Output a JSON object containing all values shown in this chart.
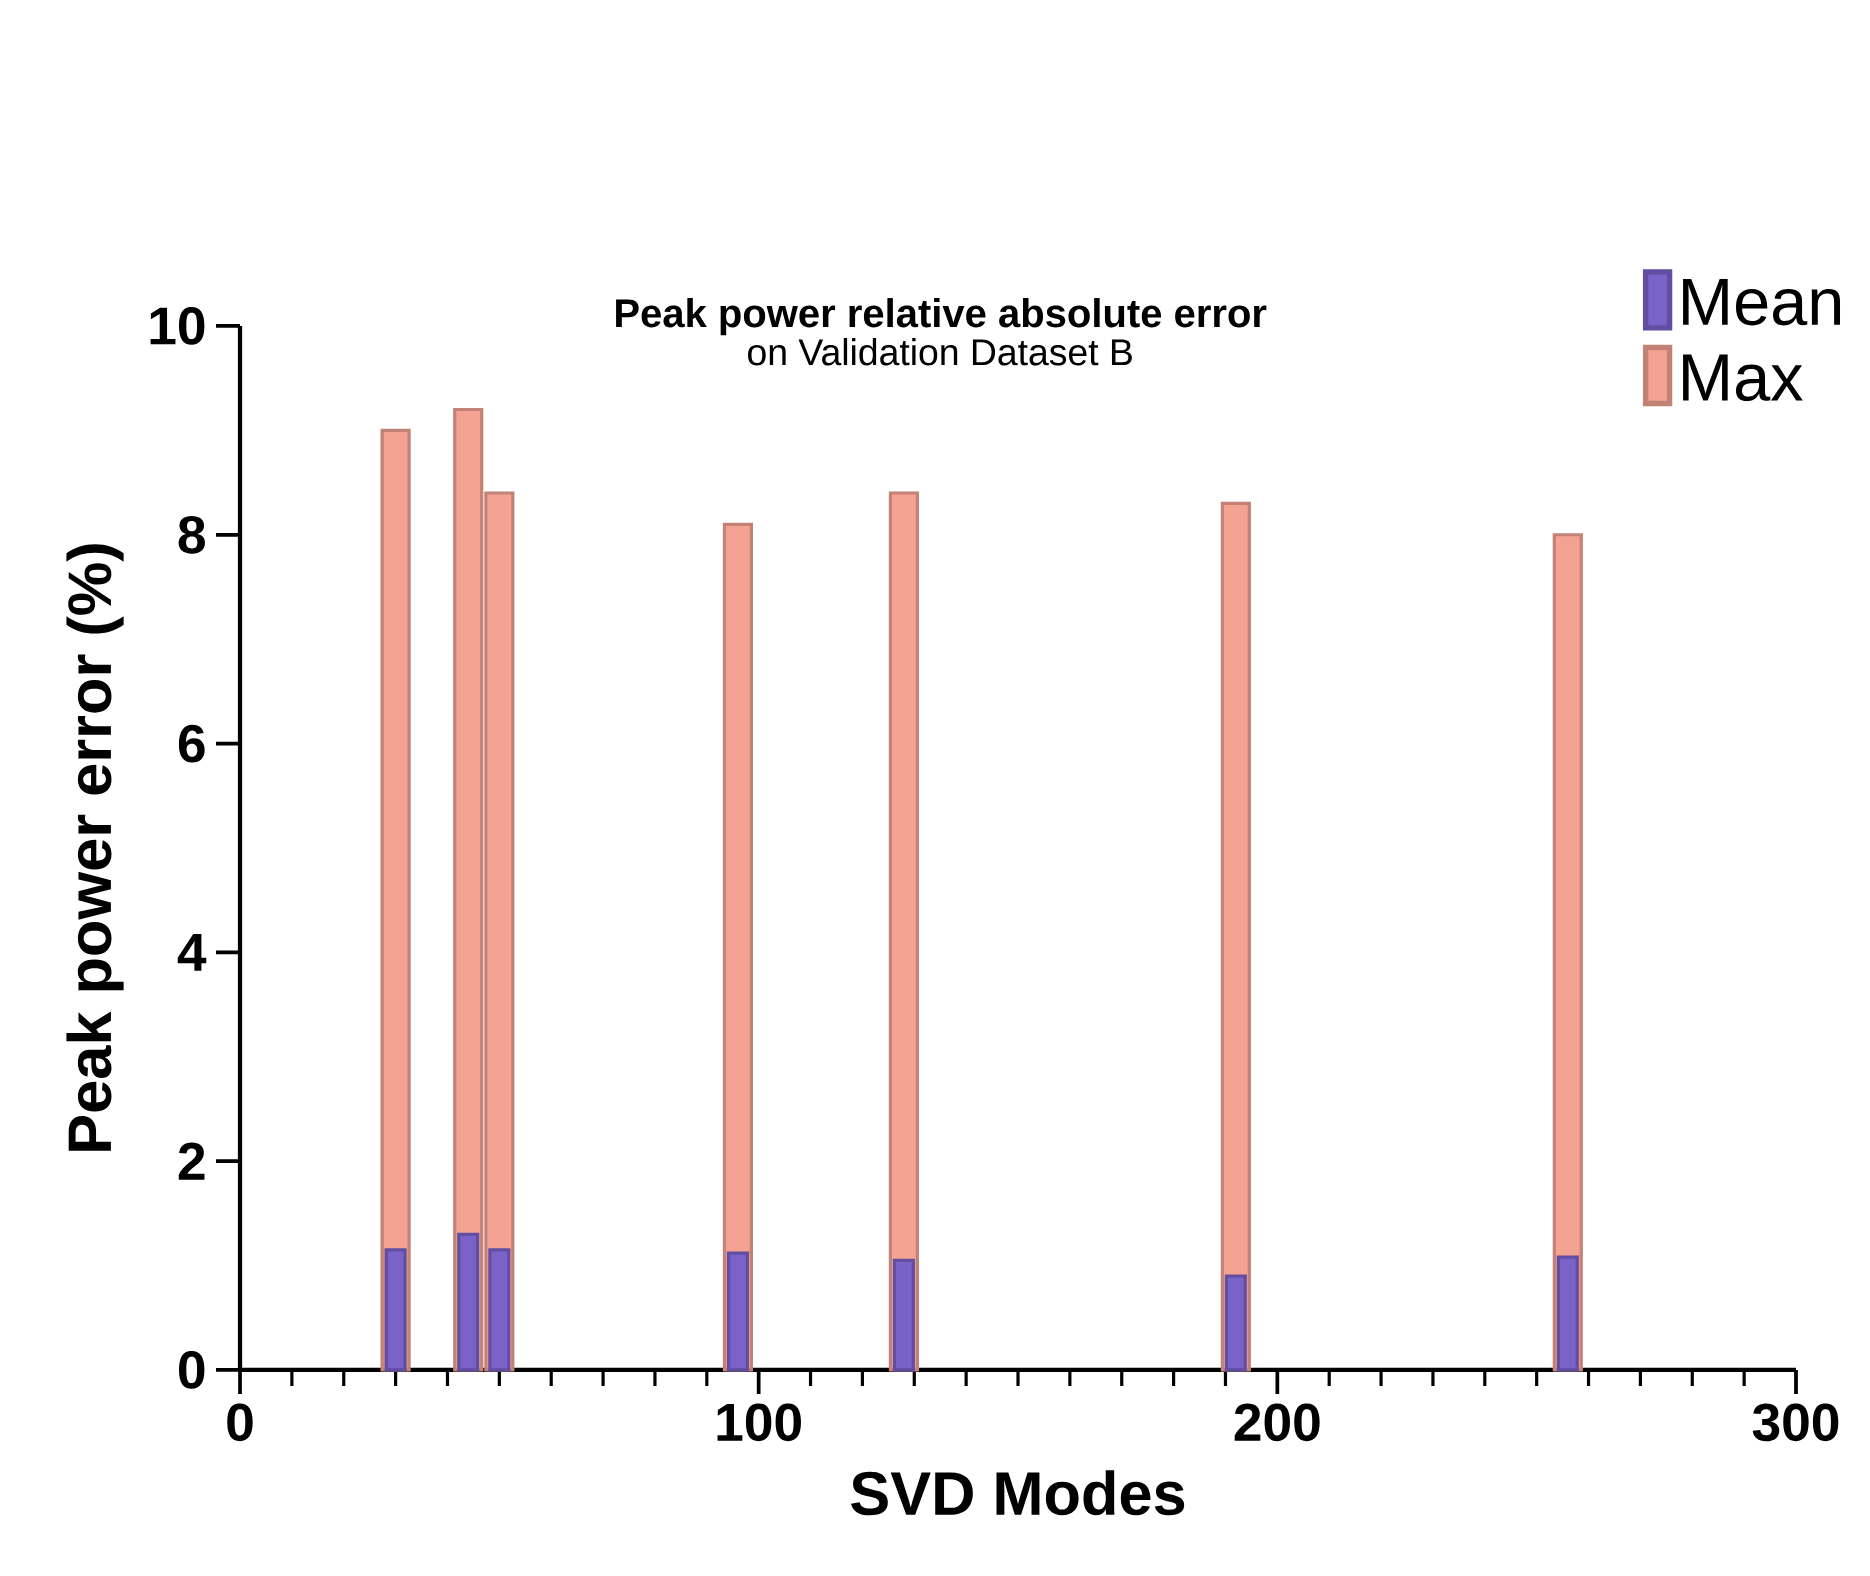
{
  "chart_data": {
    "type": "bar",
    "title": "Peak power relative absolute error",
    "subtitle": "on Validation Dataset B",
    "xlabel": "SVD Modes",
    "ylabel": "Peak power error (%)",
    "series": [
      {
        "name": "Mean",
        "color": "#7b62c9",
        "x": [
          30,
          44,
          50,
          96,
          128,
          192,
          256
        ],
        "values": [
          1.15,
          1.3,
          1.15,
          1.12,
          1.05,
          0.9,
          1.08
        ]
      },
      {
        "name": "Max",
        "color": "#f4a393",
        "x": [
          30,
          44,
          50,
          96,
          128,
          192,
          256
        ],
        "values": [
          9.0,
          9.2,
          8.4,
          8.1,
          8.4,
          8.3,
          8.0
        ]
      }
    ],
    "xlim": [
      0,
      300
    ],
    "xticks": [
      0,
      100,
      200,
      300
    ],
    "ylim": [
      0,
      10
    ],
    "yticks": [
      0,
      2,
      4,
      6,
      8,
      10
    ],
    "grid": false,
    "legend": "top right"
  }
}
